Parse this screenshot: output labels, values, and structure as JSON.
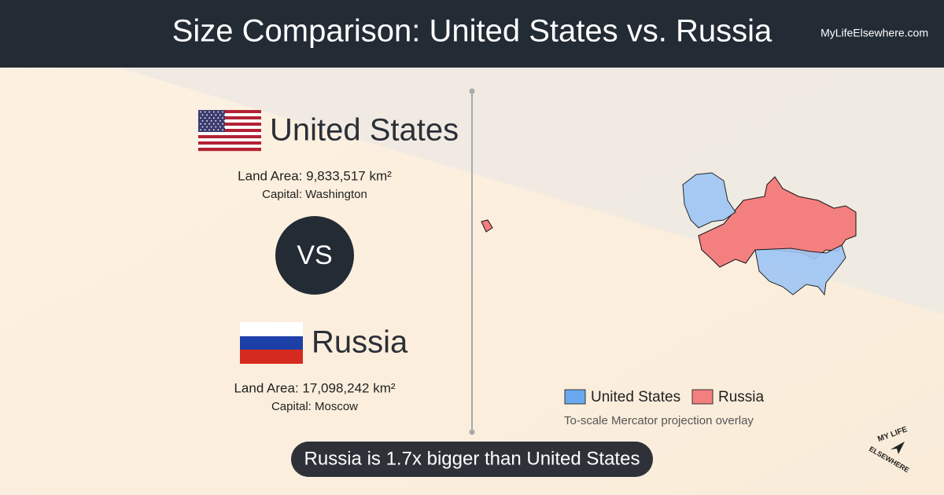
{
  "header": {
    "title": "Size Comparison: United States vs. Russia",
    "site": "MyLifeElsewhere.com"
  },
  "country_a": {
    "name": "United States",
    "land_area": "Land Area: 9,833,517 km²",
    "capital": "Capital: Washington"
  },
  "vs": "VS",
  "country_b": {
    "name": "Russia",
    "land_area": "Land Area: 17,098,242 km²",
    "capital": "Capital: Moscow"
  },
  "legend": {
    "items": [
      "United States",
      "Russia"
    ],
    "note": "To-scale Mercator projection overlay"
  },
  "summary": "Russia is 1.7x bigger than United States",
  "logo": {
    "line1": "MY LIFE",
    "line2": "ELSEWHERE"
  }
}
